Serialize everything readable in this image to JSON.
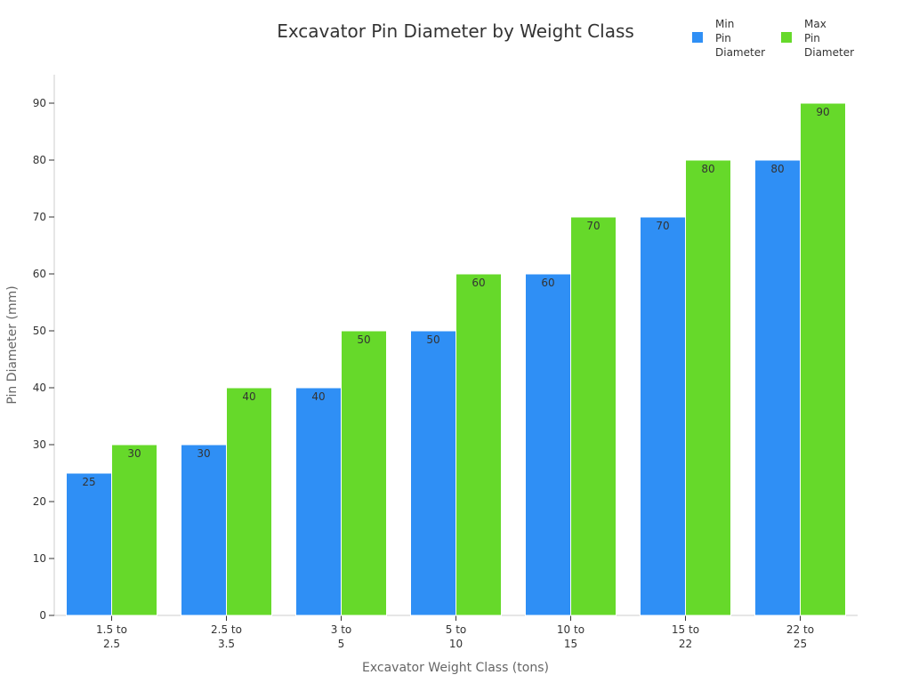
{
  "chart_data": {
    "type": "bar",
    "title": "Excavator Pin Diameter by Weight Class",
    "xlabel": "Excavator Weight Class (tons)",
    "ylabel": "Pin Diameter (mm)",
    "categories": [
      "1.5 to 2.5",
      "2.5 to 3.5",
      "3 to 5",
      "5 to 10",
      "10 to 15",
      "15 to 22",
      "22 to 25"
    ],
    "category_lines": [
      [
        "1.5 to",
        "2.5"
      ],
      [
        "2.5 to",
        "3.5"
      ],
      [
        "3 to",
        "5"
      ],
      [
        "5 to",
        "10"
      ],
      [
        "10 to",
        "15"
      ],
      [
        "15 to",
        "22"
      ],
      [
        "22 to",
        "25"
      ]
    ],
    "series": [
      {
        "name": "Min Pin Diameter",
        "name_lines": [
          "Min",
          "Pin",
          "Diameter"
        ],
        "color": "#2f8ff5",
        "values": [
          25,
          30,
          40,
          50,
          60,
          70,
          80
        ]
      },
      {
        "name": "Max Pin Diameter",
        "name_lines": [
          "Max",
          "Pin",
          "Diameter"
        ],
        "color": "#66d92a",
        "values": [
          30,
          40,
          50,
          60,
          70,
          80,
          90
        ]
      }
    ],
    "ylim": [
      0,
      95
    ],
    "yticks": [
      0,
      10,
      20,
      30,
      40,
      50,
      60,
      70,
      80,
      90
    ],
    "grid": false,
    "legend": "top-right"
  }
}
